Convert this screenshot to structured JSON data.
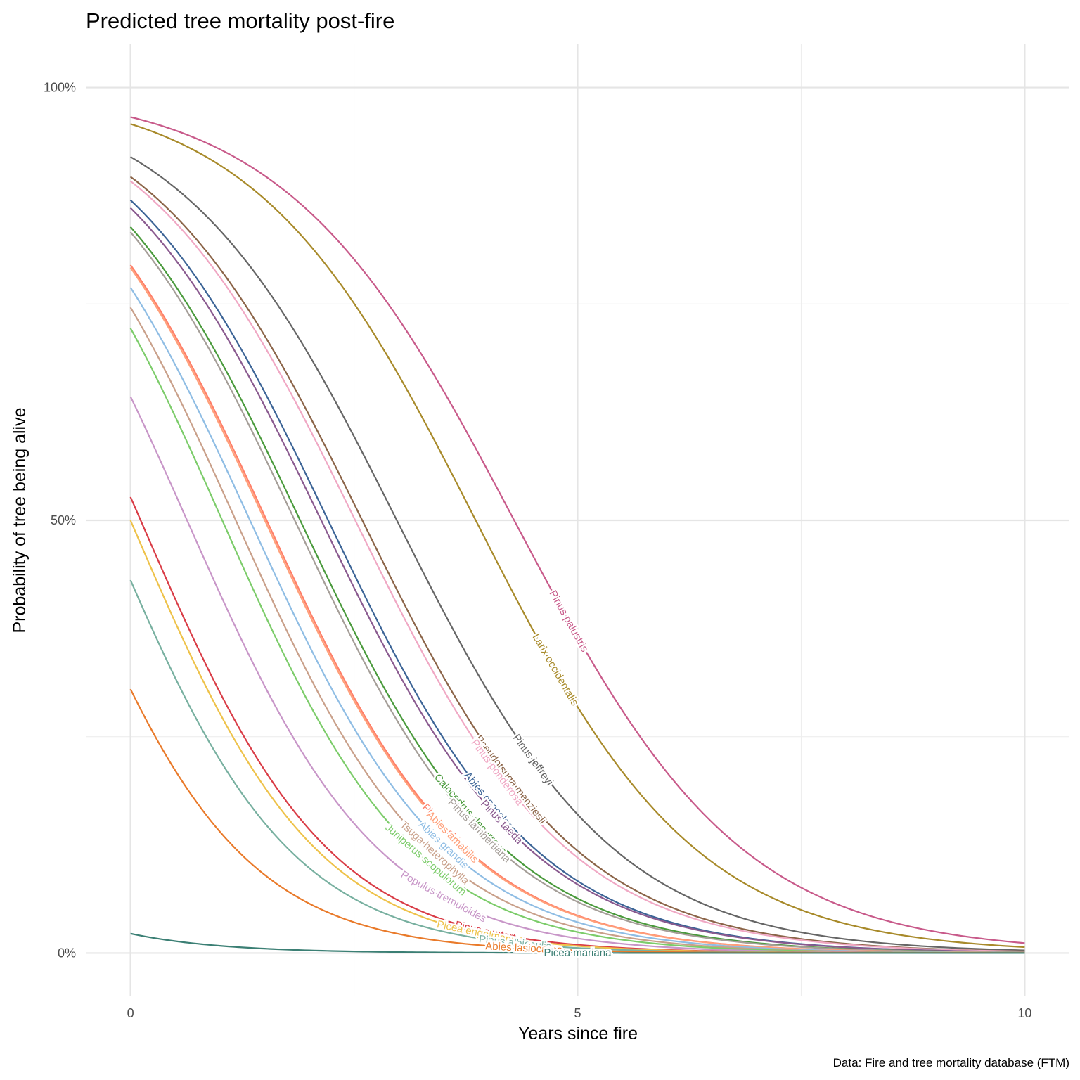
{
  "chart_data": {
    "type": "line",
    "title": "Predicted tree mortality post-fire",
    "xlabel": "Years since fire",
    "ylabel": "Probability of tree being alive",
    "caption": "Data: Fire and tree mortality database (FTM)",
    "xlim": [
      -0.5,
      10.5
    ],
    "ylim": [
      -0.05,
      1.05
    ],
    "x_ticks": [
      0,
      5,
      10
    ],
    "x_tick_labels": [
      "0",
      "5",
      "10"
    ],
    "y_ticks": [
      0,
      0.5,
      1
    ],
    "y_tick_labels": [
      "0%",
      "50%",
      "100%"
    ],
    "grid": true,
    "legend": "labels placed directly on lines",
    "series": [
      {
        "name": "Pinus palustris",
        "p0": 0.966,
        "slope": -0.78,
        "color": "#c85a8a",
        "label_x": 4.9
      },
      {
        "name": "Larix occidentalis",
        "p0": 0.958,
        "slope": -0.81,
        "color": "#a88a2a",
        "label_x": 4.75
      },
      {
        "name": "Pinus jeffreyi",
        "p0": 0.92,
        "slope": -0.82,
        "color": "#666666",
        "label_x": 4.5
      },
      {
        "name": "Pseudotsuga menziesii",
        "p0": 0.897,
        "slope": -0.835,
        "color": "#8b6448",
        "label_x": 4.25
      },
      {
        "name": "Pinus ponderosa",
        "p0": 0.892,
        "slope": -0.84,
        "color": "#f0a8c4",
        "label_x": 4.1
      },
      {
        "name": "Abies concolor",
        "p0": 0.87,
        "slope": -0.86,
        "color": "#3c6496",
        "label_x": 4.0
      },
      {
        "name": "Pinus taeda",
        "p0": 0.861,
        "slope": -0.855,
        "color": "#8a5a8f",
        "label_x": 4.15
      },
      {
        "name": "Calocedrus decurrens",
        "p0": 0.839,
        "slope": -0.87,
        "color": "#4a9a3c",
        "label_x": 3.8
      },
      {
        "name": "Pinus lambertiana",
        "p0": 0.833,
        "slope": -0.875,
        "color": "#a59e98",
        "label_x": 3.9
      },
      {
        "name": "Pinus echinata",
        "p0": 0.795,
        "slope": -0.89,
        "color": "#ff7f68",
        "label_x": 3.55
      },
      {
        "name": "Abies amabilis",
        "p0": 0.792,
        "slope": -0.89,
        "color": "#ffa07a",
        "label_x": 3.6
      },
      {
        "name": "Abies grandis",
        "p0": 0.769,
        "slope": -0.9,
        "color": "#8fbde4",
        "label_x": 3.5
      },
      {
        "name": "Tsuga heterophylla",
        "p0": 0.746,
        "slope": -0.915,
        "color": "#c9a08a",
        "label_x": 3.4
      },
      {
        "name": "Juniperus scopulorum",
        "p0": 0.722,
        "slope": -0.93,
        "color": "#7ccc6a",
        "label_x": 3.3
      },
      {
        "name": "Populus tremuloides",
        "p0": 0.643,
        "slope": -0.93,
        "color": "#c896c8",
        "label_x": 3.5
      },
      {
        "name": "Pinus contorta",
        "p0": 0.527,
        "slope": -0.95,
        "color": "#d93c46",
        "label_x": 4.0
      },
      {
        "name": "Picea engelmannii",
        "p0": 0.5,
        "slope": -0.96,
        "color": "#eec24a",
        "label_x": 3.9
      },
      {
        "name": "Pinus albicaulis",
        "p0": 0.431,
        "slope": -0.97,
        "color": "#78b0a0",
        "label_x": 4.3
      },
      {
        "name": "Abies lasiocarpa",
        "p0": 0.305,
        "slope": -0.99,
        "color": "#e97a2a",
        "label_x": 4.4
      },
      {
        "name": "Picea mariana",
        "p0": 0.0225,
        "slope": -1.0,
        "color": "#3b7f74",
        "label_x": 5.0
      }
    ]
  }
}
